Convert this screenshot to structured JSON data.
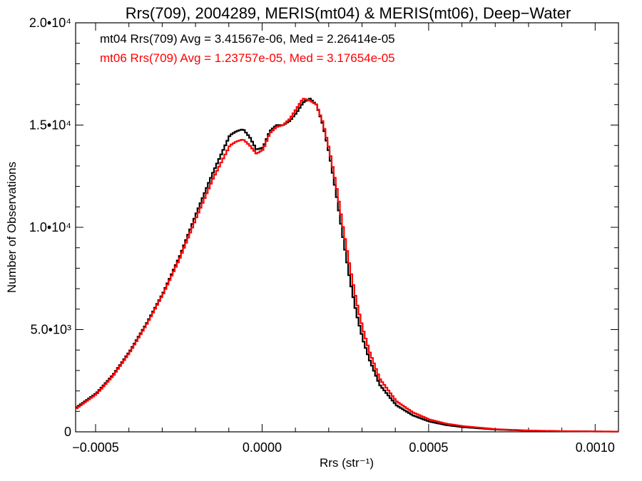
{
  "chart_data": {
    "type": "line",
    "step": true,
    "title": "Rrs(709), 2004289, MERIS(mt04) & MERIS(mt06), Deep−Water",
    "xlabel": "Rrs (str⁻¹)",
    "ylabel": "Number of Observations",
    "xlim": [
      -0.00056,
      0.00107
    ],
    "ylim": [
      0,
      20000
    ],
    "x_ticks": [
      {
        "value": -0.0005,
        "label": "−0.0005"
      },
      {
        "value": 0.0,
        "label": "0.0000"
      },
      {
        "value": 0.0005,
        "label": "0.0005"
      },
      {
        "value": 0.001,
        "label": "0.0010"
      }
    ],
    "y_ticks": [
      {
        "value": 0,
        "label": "0"
      },
      {
        "value": 5000,
        "label": "5.0•10³"
      },
      {
        "value": 10000,
        "label": "1.0•10⁴"
      },
      {
        "value": 15000,
        "label": "1.5•10⁴"
      },
      {
        "value": 20000,
        "label": "2.0•10⁴"
      }
    ],
    "legend_position": "top-left",
    "series": [
      {
        "name": "mt04",
        "color": "#000000",
        "legend": "mt04 Rrs(709) Avg = 3.41567e-06, Med = 2.26414e-05",
        "x": [
          -0.00056,
          -0.0005,
          -0.00045,
          -0.0004,
          -0.00035,
          -0.0003,
          -0.00025,
          -0.0002,
          -0.00015,
          -0.0001,
          -8e-05,
          -6e-05,
          -4e-05,
          -2e-05,
          0.0,
          2e-05,
          4e-05,
          6e-05,
          8e-05,
          0.0001,
          0.00012,
          0.00014,
          0.00016,
          0.00018,
          0.0002,
          0.00022,
          0.00024,
          0.00026,
          0.00028,
          0.0003,
          0.00032,
          0.00035,
          0.0004,
          0.00045,
          0.0005,
          0.00055,
          0.0006,
          0.0007,
          0.0008,
          0.0009,
          0.001,
          0.00107
        ],
        "y": [
          1200,
          1900,
          2800,
          3950,
          5300,
          6800,
          8600,
          10700,
          12700,
          14500,
          14700,
          14800,
          14400,
          13800,
          13900,
          14700,
          15000,
          15000,
          15200,
          15600,
          16100,
          16300,
          16000,
          15000,
          13500,
          11600,
          9500,
          7500,
          5800,
          4500,
          3500,
          2300,
          1300,
          800,
          500,
          330,
          230,
          110,
          55,
          30,
          18,
          12
        ]
      },
      {
        "name": "mt06",
        "color": "#ff0000",
        "legend": "mt06 Rrs(709) Avg = 1.23757e-05, Med = 3.17654e-05",
        "x": [
          -0.00056,
          -0.0005,
          -0.00045,
          -0.0004,
          -0.00035,
          -0.0003,
          -0.00025,
          -0.0002,
          -0.00015,
          -0.0001,
          -8e-05,
          -6e-05,
          -4e-05,
          -2e-05,
          0.0,
          2e-05,
          4e-05,
          6e-05,
          8e-05,
          0.0001,
          0.00012,
          0.00014,
          0.00016,
          0.00018,
          0.0002,
          0.00022,
          0.00024,
          0.00026,
          0.00028,
          0.0003,
          0.00032,
          0.00035,
          0.0004,
          0.00045,
          0.0005,
          0.00055,
          0.0006,
          0.0007,
          0.0008,
          0.0009,
          0.001,
          0.00107
        ],
        "y": [
          1150,
          1850,
          2750,
          3900,
          5250,
          6750,
          8500,
          10500,
          12400,
          14000,
          14200,
          14300,
          14000,
          13600,
          13800,
          14600,
          14900,
          15000,
          15300,
          15800,
          16300,
          16200,
          16000,
          15100,
          13700,
          12000,
          10000,
          8100,
          6400,
          5000,
          3900,
          2600,
          1500,
          950,
          600,
          400,
          280,
          130,
          65,
          35,
          20,
          14
        ]
      }
    ]
  }
}
